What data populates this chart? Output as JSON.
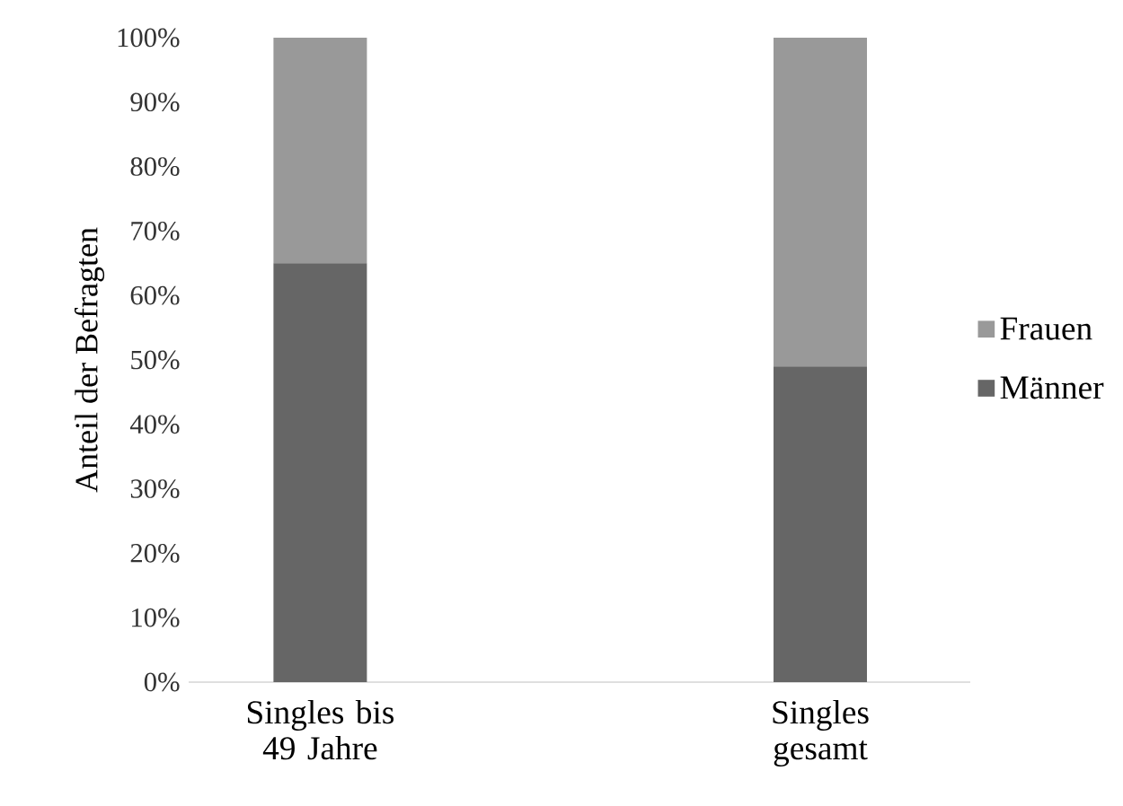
{
  "chart_data": {
    "type": "bar",
    "stacked": true,
    "ylabel": "Anteil der Befragten",
    "categories": [
      "Singles bis 49 Jahre",
      "Singles gesamt"
    ],
    "series": [
      {
        "name": "Männer",
        "color": "#666666",
        "values": [
          65,
          49
        ]
      },
      {
        "name": "Frauen",
        "color": "#999999",
        "values": [
          35,
          51
        ]
      }
    ],
    "ylim": [
      0,
      100
    ],
    "yticks": [
      {
        "value": 0,
        "label": "0%"
      },
      {
        "value": 10,
        "label": "10%"
      },
      {
        "value": 20,
        "label": "20%"
      },
      {
        "value": 30,
        "label": "30%"
      },
      {
        "value": 40,
        "label": "40%"
      },
      {
        "value": 50,
        "label": "50%"
      },
      {
        "value": 60,
        "label": "60%"
      },
      {
        "value": 70,
        "label": "70%"
      },
      {
        "value": 80,
        "label": "80%"
      },
      {
        "value": 90,
        "label": "90%"
      },
      {
        "value": 100,
        "label": "100%"
      }
    ],
    "legend": "right",
    "grid": false
  }
}
